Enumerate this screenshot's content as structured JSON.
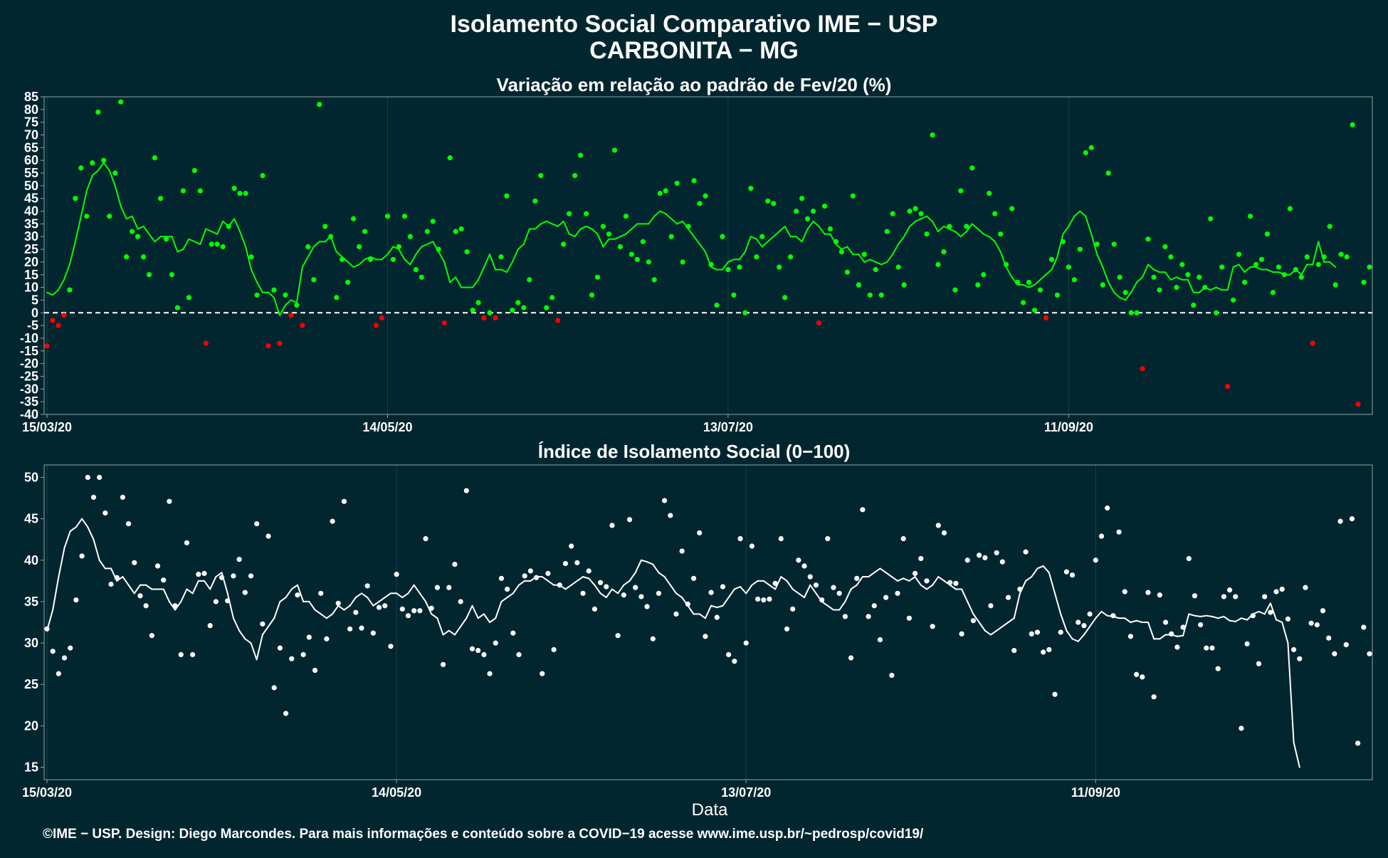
{
  "header": {
    "title_line1": "Isolamento Social Comparativo IME − USP",
    "title_line2": "CARBONITA − MG"
  },
  "footer": {
    "credit": "©IME − USP. Design: Diego Marcondes. Para mais informações e conteúdo sobre a COVID−19 acesse www.ime.usp.br/~pedrosp/covid19/"
  },
  "colors": {
    "background": "#02262f",
    "positive": "#00ff00",
    "negative": "#ff0000",
    "index": "#ffffff",
    "grid": "#12404a",
    "frame": "#8fa4a8"
  },
  "chart_data": [
    {
      "type": "scatter",
      "title": "Variação em relação ao padrão de Fev/20 (%)",
      "xlabel": "",
      "ylabel": "",
      "x_start": "15/03/20",
      "x_ticks": [
        "15/03/20",
        "14/05/20",
        "13/07/20",
        "11/09/20"
      ],
      "ylim": [
        -40,
        85
      ],
      "y_ticks": [
        -40,
        -35,
        -30,
        -25,
        -20,
        -15,
        -10,
        -5,
        0,
        5,
        10,
        15,
        20,
        25,
        30,
        35,
        40,
        45,
        50,
        55,
        60,
        65,
        70,
        75,
        80,
        85
      ],
      "reference_line": 0,
      "grid": true,
      "series": [
        {
          "kind": "daily_points",
          "values": [
            -13,
            -3,
            -5,
            -1,
            9,
            45,
            57,
            38,
            59,
            79,
            60,
            38,
            55,
            83,
            22,
            32,
            30,
            22,
            15,
            61,
            45,
            29,
            15,
            2,
            48,
            6,
            56,
            48,
            -12,
            27,
            27,
            26,
            34,
            49,
            47,
            47,
            22,
            7,
            54,
            -13,
            9,
            -12,
            7,
            -1,
            3,
            -5,
            26,
            13,
            82,
            34,
            30,
            6,
            21,
            12,
            37,
            26,
            32,
            21,
            -5,
            -2,
            38,
            21,
            26,
            38,
            30,
            17,
            14,
            32,
            36,
            25,
            -4,
            61,
            32,
            33,
            24,
            1,
            4,
            -2,
            0,
            -2,
            22,
            46,
            1,
            4,
            2,
            13,
            44,
            54,
            2,
            6,
            -3,
            27,
            39,
            54,
            62,
            39,
            7,
            14,
            34,
            31,
            64,
            26,
            38,
            23,
            21,
            28,
            20,
            13,
            47,
            48,
            30,
            51,
            20,
            34,
            52,
            43,
            46,
            19,
            3,
            30,
            17,
            7,
            18,
            0,
            49,
            22,
            30,
            44,
            43,
            18,
            6,
            22,
            40,
            45,
            37,
            40,
            -4,
            42,
            33,
            28,
            24,
            16,
            46,
            11,
            23,
            7,
            17,
            7,
            32,
            39,
            18,
            11,
            40,
            41,
            39,
            31,
            70,
            19,
            24,
            34,
            9,
            48,
            34,
            57,
            11,
            15,
            47,
            39,
            31,
            19,
            41,
            12,
            4,
            12,
            1,
            9,
            -2,
            21,
            7,
            28,
            18,
            13,
            25,
            63,
            65,
            27,
            11,
            55,
            27,
            14,
            8,
            0,
            0,
            -22,
            29,
            14,
            9,
            26,
            22,
            10,
            19,
            15,
            3,
            14,
            10,
            37,
            0,
            18,
            -29,
            5,
            23,
            12,
            38,
            19,
            21,
            31,
            8,
            18,
            15,
            41,
            17,
            14,
            22,
            -12,
            19,
            22,
            34,
            11,
            23,
            22,
            74,
            -36,
            12,
            18
          ]
        },
        {
          "kind": "moving_average",
          "values": [
            8,
            7,
            9,
            13,
            19,
            28,
            38,
            48,
            54,
            56,
            59,
            56,
            50,
            42,
            37,
            38,
            33,
            34,
            31,
            28,
            30,
            30,
            30,
            24,
            25,
            29,
            28,
            27,
            33,
            32,
            31,
            36,
            34,
            37,
            32,
            26,
            17,
            12,
            8,
            8,
            6,
            -1,
            3,
            5,
            4,
            18,
            22,
            26,
            28,
            28,
            30,
            24,
            22,
            20,
            18,
            19,
            21,
            22,
            21,
            21,
            23,
            26,
            25,
            21,
            19,
            23,
            26,
            27,
            28,
            24,
            20,
            12,
            14,
            10,
            10,
            10,
            13,
            18,
            23,
            17,
            17,
            16,
            20,
            25,
            27,
            33,
            33,
            35,
            36,
            35,
            34,
            36,
            31,
            30,
            33,
            34,
            33,
            31,
            26,
            29,
            29,
            30,
            31,
            33,
            35,
            35,
            35,
            38,
            40,
            39,
            37,
            35,
            36,
            33,
            30,
            27,
            24,
            18,
            17,
            17,
            20,
            21,
            21,
            24,
            30,
            29,
            26,
            28,
            30,
            32,
            34,
            30,
            30,
            28,
            33,
            36,
            34,
            31,
            31,
            27,
            25,
            26,
            23,
            23,
            20,
            21,
            20,
            19,
            20,
            23,
            27,
            30,
            34,
            36,
            37,
            38,
            36,
            32,
            34,
            33,
            32,
            30,
            32,
            35,
            33,
            31,
            30,
            28,
            24,
            18,
            14,
            11,
            11,
            10,
            11,
            13,
            15,
            17,
            22,
            31,
            34,
            38,
            40,
            38,
            31,
            23,
            18,
            12,
            8,
            6,
            5,
            8,
            12,
            14,
            19,
            17,
            16,
            16,
            13,
            14,
            13,
            13,
            8,
            8,
            10,
            9,
            10,
            9,
            9,
            18,
            19,
            16,
            18,
            18,
            17,
            17,
            16,
            16,
            15,
            15,
            17,
            15,
            19,
            19,
            28,
            20,
            20,
            18
          ]
        }
      ]
    },
    {
      "type": "scatter",
      "title": "Índice de Isolamento Social (0−100)",
      "xlabel": "Data",
      "ylabel": "",
      "x_start": "15/03/20",
      "x_ticks": [
        "15/03/20",
        "14/05/20",
        "13/07/20",
        "11/09/20"
      ],
      "ylim": [
        13.5,
        51.5
      ],
      "y_ticks": [
        15,
        20,
        25,
        30,
        35,
        40,
        45,
        50
      ],
      "grid": true,
      "series": [
        {
          "kind": "daily_points",
          "values": [
            31.7,
            29,
            26.3,
            28.2,
            29.4,
            35.2,
            40.5,
            50,
            47.6,
            50,
            45.7,
            37.1,
            37.9,
            47.6,
            44.4,
            39.7,
            35.7,
            34.5,
            30.9,
            39.3,
            37.6,
            47.1,
            34.5,
            28.6,
            42.1,
            28.6,
            38.3,
            38.4,
            32.1,
            35,
            37.9,
            35.1,
            38.1,
            40.1,
            36.1,
            38.1,
            44.4,
            32.3,
            42.9,
            24.6,
            29.4,
            21.5,
            28.1,
            35.8,
            28.6,
            30.7,
            26.7,
            36,
            30.5,
            44.7,
            34.8,
            47.1,
            31.7,
            33.7,
            31.8,
            36.9,
            31.2,
            34.3,
            34.5,
            29.6,
            38.3,
            34.1,
            33.3,
            33.9,
            33.9,
            42.6,
            34.2,
            36.7,
            27.4,
            36.7,
            39.5,
            35,
            48.4,
            29.3,
            29.1,
            28.6,
            26.3,
            30,
            37.8,
            36.5,
            31.2,
            28.6,
            38.1,
            38.7,
            37.9,
            26.3,
            38.4,
            29.2,
            37,
            39.6,
            41.7,
            39.7,
            36,
            38.7,
            34.1,
            37.3,
            36.8,
            44.2,
            30.9,
            35.8,
            44.9,
            36.7,
            35.6,
            34.4,
            30.5,
            36,
            47.2,
            45.4,
            33.5,
            41.1,
            34.7,
            37.8,
            43.3,
            30.8,
            36.1,
            33.1,
            36.8,
            28.6,
            27.8,
            42.6,
            30,
            41.7,
            35.3,
            35.2,
            35.3,
            37.2,
            42.6,
            31.7,
            34.1,
            40,
            39.3,
            38,
            37,
            35.2,
            42.6,
            36.7,
            36,
            33.2,
            28.2,
            37.8,
            46.1,
            33.2,
            34.5,
            30.4,
            35.5,
            26.1,
            36,
            42.6,
            33,
            38.4,
            40.2,
            37.5,
            32,
            44.2,
            43.3,
            37.3,
            37.2,
            31.1,
            40,
            32.7,
            40.6,
            40.3,
            34.5,
            40.9,
            39.8,
            35.5,
            29.1,
            36.5,
            41,
            31.1,
            31.3,
            28.9,
            29.2,
            23.8,
            31.3,
            38.6,
            38.2,
            32.5,
            32.1,
            33.5,
            40,
            42.9,
            46.3,
            33.3,
            43.4,
            36.2,
            30.8,
            26.2,
            25.9,
            36.1,
            23.5,
            35.8,
            32.5,
            31.1,
            29.5,
            31.9,
            40.2,
            35.7,
            32.2,
            29.4,
            29.4,
            26.9,
            35.6,
            36.4,
            35.6,
            19.7,
            29.9,
            33.3,
            27.5,
            35.6,
            33.7,
            36.2,
            36.5,
            32.9,
            29.2,
            28.1,
            36.7,
            32.4,
            32.2,
            33.9,
            30.6,
            28.7,
            44.7,
            29.8,
            45,
            17.9,
            31.9,
            28.7
          ]
        },
        {
          "kind": "moving_average",
          "values": [
            31.5,
            34,
            38,
            41.5,
            43.5,
            44,
            45,
            44,
            42.5,
            40,
            39,
            39,
            37.5,
            38,
            37,
            36,
            37,
            37,
            36.5,
            36.5,
            36.5,
            35,
            34,
            35,
            36.5,
            36,
            37.5,
            37.5,
            36.5,
            38,
            38.5,
            36,
            33,
            31.5,
            30.5,
            30,
            28,
            31,
            32,
            33,
            35,
            35.5,
            36.5,
            37,
            35,
            35,
            34,
            33.5,
            33,
            33.5,
            34.5,
            34,
            34.5,
            35.5,
            36,
            35.5,
            34.5,
            35,
            35.5,
            36,
            36,
            35.5,
            36,
            37,
            36,
            35,
            33.5,
            33,
            31,
            31.5,
            31,
            32,
            33,
            34.5,
            33,
            33.5,
            32.5,
            33,
            35,
            35.5,
            36,
            37,
            37.5,
            37.5,
            38,
            38,
            37.5,
            37,
            37,
            36.5,
            37,
            37.5,
            38,
            37.8,
            37,
            36,
            35.5,
            36.5,
            36,
            37,
            37.5,
            38.5,
            40,
            39.8,
            39.5,
            38.5,
            38,
            37,
            36,
            35.5,
            34.5,
            33.5,
            33.5,
            33,
            34.5,
            34.3,
            34.5,
            35.5,
            36.5,
            36.8,
            36,
            37,
            37.5,
            37.5,
            37,
            36.5,
            38,
            37.5,
            36.5,
            36,
            35.5,
            37,
            36,
            35,
            34.5,
            34,
            34,
            35,
            36.5,
            37,
            38,
            38,
            38.5,
            39,
            38.5,
            38,
            37.5,
            37.8,
            37.5,
            38,
            37,
            36.5,
            37,
            38,
            37.5,
            37,
            36.5,
            36.5,
            35,
            33.5,
            32.5,
            31.5,
            31,
            31.5,
            32,
            32.5,
            33,
            36,
            37.5,
            38,
            39,
            39.3,
            38.5,
            36,
            33.5,
            31.5,
            30.5,
            30.2,
            31,
            32,
            33,
            33.8,
            33.3,
            33.2,
            33,
            33,
            32.5,
            32.7,
            32.5,
            32.5,
            30.5,
            30.5,
            31,
            31,
            30.8,
            30.9,
            33.5,
            33.3,
            33.2,
            33.3,
            33.2,
            33,
            33.2,
            32.7,
            32.6,
            33,
            32.8,
            33.5,
            33.8,
            33.5,
            34.8,
            32.8,
            32.5,
            30,
            18,
            15
          ]
        }
      ]
    }
  ]
}
